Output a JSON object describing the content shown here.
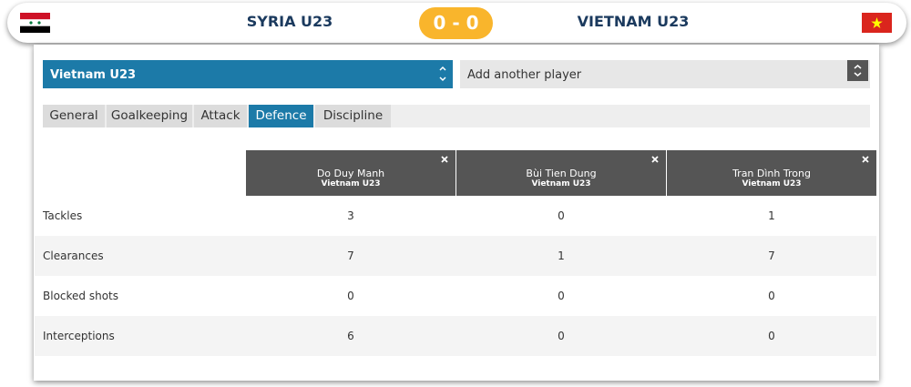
{
  "header": {
    "home_team": "SYRIA U23",
    "score": "0 - 0",
    "away_team": "VIETNAM U23"
  },
  "controls": {
    "team_select": "Vietnam U23",
    "player_select": "Add another player"
  },
  "tabs": {
    "items": [
      "General",
      "Goalkeeping",
      "Attack",
      "Defence",
      "Discipline"
    ],
    "active": 3
  },
  "table": {
    "columns": [
      {
        "name": "Do Duy Manh",
        "team": "Vietnam U23"
      },
      {
        "name": "Bùi Tien Dung",
        "team": "Vietnam U23"
      },
      {
        "name": "Tran Dình Trong",
        "team": "Vietnam U23"
      }
    ],
    "rows": [
      {
        "label": "Tackles",
        "values": [
          3,
          0,
          1
        ]
      },
      {
        "label": "Clearances",
        "values": [
          7,
          1,
          7
        ]
      },
      {
        "label": "Blocked shots",
        "values": [
          0,
          0,
          0
        ]
      },
      {
        "label": "Interceptions",
        "values": [
          6,
          0,
          0
        ]
      }
    ]
  }
}
